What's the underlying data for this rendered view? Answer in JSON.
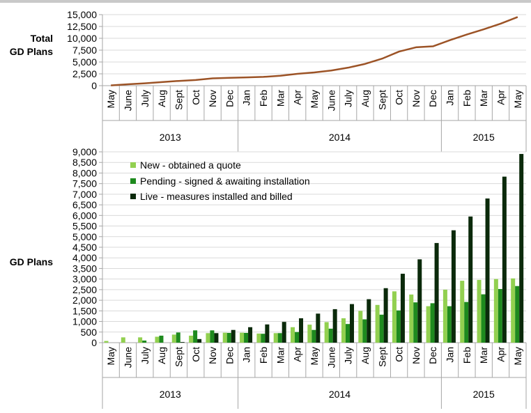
{
  "colors": {
    "line": "#9c5326",
    "new": "#92d050",
    "pending": "#1e8a1e",
    "live": "#0b2a0b",
    "grid": "#d9d9d9",
    "axis": "#a6a6a6"
  },
  "top_label_line1": "Total",
  "top_label_line2": "GD Plans",
  "bottom_label": "GD Plans",
  "months": [
    "May",
    "June",
    "July",
    "Aug",
    "Sept",
    "Oct",
    "Nov",
    "Dec",
    "Jan",
    "Feb",
    "Mar",
    "Apr",
    "May",
    "June",
    "July",
    "Aug",
    "Sept",
    "Oct",
    "Nov",
    "Dec",
    "Jan",
    "Feb",
    "Mar",
    "Apr",
    "May"
  ],
  "years": [
    {
      "label": "2013",
      "count": 8
    },
    {
      "label": "2014",
      "count": 12
    },
    {
      "label": "2015",
      "count": 5
    }
  ],
  "legend": [
    {
      "key": "new",
      "label": "New - obtained a quote"
    },
    {
      "key": "pending",
      "label": "Pending - signed & awaiting installation"
    },
    {
      "key": "live",
      "label": "Live - measures installed and billed"
    }
  ],
  "chart_data": [
    {
      "type": "line",
      "ylabel": "Total GD Plans",
      "ylim": [
        0,
        15000
      ],
      "yticks": [
        "0",
        "2,500",
        "5,000",
        "7,500",
        "10,000",
        "12,500",
        "15,000"
      ],
      "grid": true,
      "series": [
        {
          "name": "Total GD Plans",
          "values": [
            50,
            300,
            500,
            750,
            1000,
            1200,
            1550,
            1650,
            1750,
            1850,
            2100,
            2500,
            2800,
            3200,
            3800,
            4600,
            5700,
            7200,
            8100,
            8300,
            9600,
            10800,
            11900,
            13100,
            14500
          ]
        }
      ]
    },
    {
      "type": "bar",
      "ylabel": "GD Plans",
      "ylim": [
        0,
        9000
      ],
      "yticks": [
        "0",
        "500",
        "1,000",
        "1,500",
        "2,000",
        "2,500",
        "3,000",
        "3,500",
        "4,000",
        "4,500",
        "5,000",
        "5,500",
        "6,000",
        "6,500",
        "7,000",
        "7,500",
        "8,000",
        "8,500",
        "9,000"
      ],
      "grid": true,
      "legend_position": "top-left",
      "series": [
        {
          "name": "New - obtained a quote",
          "values": [
            80,
            250,
            250,
            280,
            380,
            330,
            450,
            470,
            470,
            430,
            450,
            730,
            850,
            970,
            1150,
            1500,
            1780,
            2420,
            2270,
            1720,
            2500,
            2920,
            2960,
            3000,
            3030
          ]
        },
        {
          "name": "Pending - signed & awaiting installation",
          "values": [
            0,
            0,
            100,
            330,
            480,
            580,
            580,
            460,
            460,
            420,
            450,
            500,
            600,
            660,
            880,
            1100,
            1320,
            1520,
            1900,
            1860,
            1720,
            1920,
            2280,
            2530,
            2670
          ]
        },
        {
          "name": "Live - measures installed and billed",
          "values": [
            0,
            0,
            0,
            0,
            30,
            170,
            450,
            600,
            730,
            860,
            980,
            1150,
            1370,
            1580,
            1820,
            2050,
            2570,
            3250,
            3930,
            4700,
            5300,
            5950,
            6800,
            7830,
            8900
          ]
        }
      ]
    }
  ]
}
